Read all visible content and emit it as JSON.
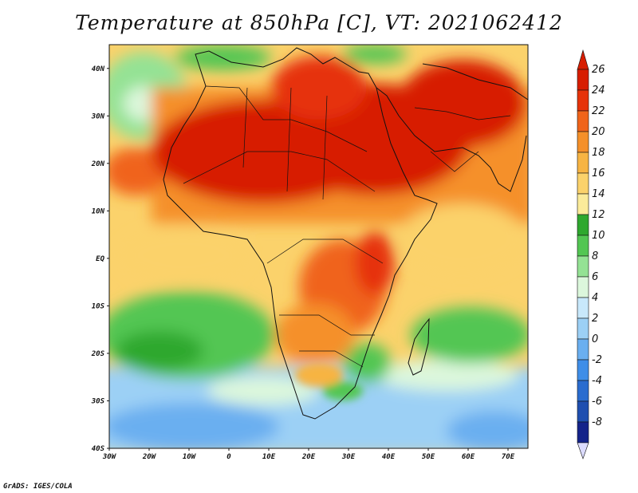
{
  "title": "Temperature at 850hPa [C], VT: 2021062412",
  "footer": "GrADS: IGES/COLA",
  "map": {
    "lat_labels": [
      "40N",
      "30N",
      "20N",
      "10N",
      "EQ",
      "10S",
      "20S",
      "30S",
      "40S"
    ],
    "lon_labels": [
      "30W",
      "20W",
      "10W",
      "0",
      "10E",
      "20E",
      "30E",
      "40E",
      "50E",
      "60E",
      "70E"
    ],
    "lat_range": [
      -40,
      45
    ],
    "lon_range": [
      -30,
      75
    ],
    "region": "Africa"
  },
  "colorbar": {
    "levels": [
      "26",
      "24",
      "22",
      "20",
      "18",
      "16",
      "14",
      "12",
      "10",
      "8",
      "6",
      "4",
      "2",
      "0",
      "-2",
      "-4",
      "-6",
      "-8"
    ],
    "colors": [
      "#d71d00",
      "#e6330a",
      "#f0641a",
      "#f5902a",
      "#f7b443",
      "#fbd26b",
      "#fbeb9a",
      "#2fa82f",
      "#53c653",
      "#94e294",
      "#dcf7dc",
      "#c8e8fb",
      "#9cd0f5",
      "#6aaff0",
      "#3f8ee8",
      "#2a6ccf",
      "#1f4fb0",
      "#14238a"
    ],
    "top_color": "#d71d00",
    "bottom_color": "#dcdcff"
  }
}
